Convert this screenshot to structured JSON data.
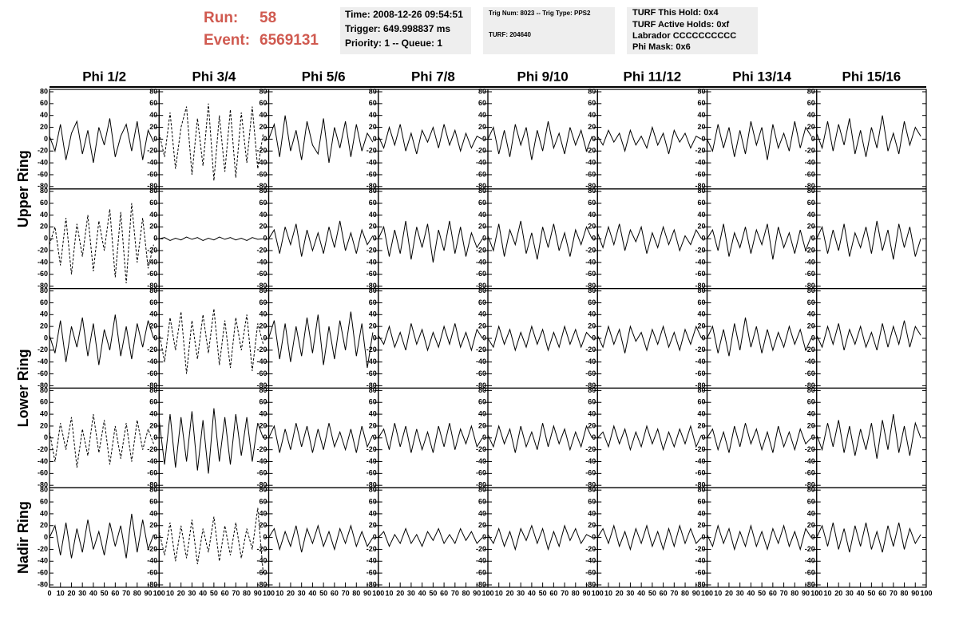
{
  "header": {
    "run_label": "Run:",
    "run": "58",
    "event_label": "Event:",
    "event": "6569131",
    "info1": [
      "Time: 2008-12-26 09:54:51",
      "Trigger: 649.998837 ms",
      "Priority: 1 -- Queue: 1"
    ],
    "info2": [
      "Trig Num: 8023 -- Trig Type: PPS2",
      "TURF: 204640"
    ],
    "info3": [
      "TURF This Hold: 0x4",
      "TURF Active Holds: 0xf",
      "Labrador CCCCCCCCCC",
      "Phi Mask: 0x6"
    ]
  },
  "chart_data": {
    "type": "line",
    "column_titles": [
      "Phi 1/2",
      "Phi 3/4",
      "Phi 5/6",
      "Phi 7/8",
      "Phi 9/10",
      "Phi 11/12",
      "Phi 13/14",
      "Phi 15/16"
    ],
    "ring_labels": [
      "Upper Ring",
      "Lower Ring",
      "Nadir Ring"
    ],
    "color": "#000000",
    "xlim": [
      0,
      100
    ],
    "xticks": [
      0,
      10,
      20,
      30,
      40,
      50,
      60,
      70,
      80,
      90,
      100
    ],
    "ylim": [
      -80,
      80
    ],
    "yticks": [
      -80,
      -60,
      -40,
      -20,
      0,
      20,
      40,
      60,
      80
    ],
    "x": [
      0,
      5,
      10,
      15,
      20,
      25,
      30,
      35,
      40,
      45,
      50,
      55,
      60,
      65,
      70,
      75,
      80,
      85,
      90,
      95
    ],
    "panels": [
      {
        "dashed": false,
        "values": [
          5,
          -20,
          25,
          -35,
          10,
          30,
          -25,
          15,
          -40,
          20,
          -10,
          35,
          -30,
          5,
          25,
          -20,
          30,
          -35,
          15,
          -5
        ]
      },
      {
        "dashed": true,
        "values": [
          10,
          -30,
          45,
          -50,
          20,
          55,
          -60,
          35,
          -45,
          60,
          -70,
          40,
          -55,
          50,
          -65,
          45,
          -40,
          55,
          -50,
          10
        ]
      },
      {
        "dashed": false,
        "values": [
          0,
          25,
          -30,
          40,
          -20,
          15,
          -35,
          30,
          -10,
          -25,
          35,
          -40,
          20,
          -15,
          30,
          -30,
          25,
          -20,
          10,
          -5
        ]
      },
      {
        "dashed": false,
        "values": [
          5,
          -15,
          20,
          -10,
          25,
          -20,
          10,
          -25,
          15,
          -5,
          20,
          -15,
          25,
          -10,
          15,
          -20,
          10,
          -15,
          5,
          0
        ]
      },
      {
        "dashed": false,
        "values": [
          0,
          20,
          -25,
          15,
          -30,
          25,
          -10,
          20,
          -35,
          15,
          -20,
          30,
          -15,
          10,
          -25,
          20,
          -10,
          15,
          -20,
          5
        ]
      },
      {
        "dashed": false,
        "values": [
          5,
          -10,
          15,
          -5,
          10,
          -20,
          15,
          -10,
          5,
          -15,
          20,
          -10,
          10,
          -25,
          15,
          -5,
          10,
          -15,
          5,
          0
        ]
      },
      {
        "dashed": false,
        "values": [
          0,
          -20,
          25,
          -15,
          20,
          -30,
          15,
          -25,
          30,
          -10,
          20,
          -35,
          25,
          -15,
          10,
          -20,
          30,
          -15,
          20,
          5
        ]
      },
      {
        "dashed": false,
        "values": [
          10,
          -15,
          30,
          -20,
          25,
          -10,
          35,
          -25,
          15,
          -30,
          20,
          -15,
          40,
          -20,
          10,
          -25,
          30,
          -10,
          20,
          5
        ]
      },
      {
        "dashed": true,
        "values": [
          -10,
          20,
          -45,
          35,
          -60,
          25,
          -30,
          40,
          -55,
          30,
          -20,
          50,
          -65,
          45,
          -75,
          60,
          -40,
          35,
          -50,
          -10
        ]
      },
      {
        "dashed": false,
        "values": [
          0,
          2,
          -3,
          1,
          -2,
          3,
          -1,
          2,
          -3,
          1,
          -2,
          3,
          -1,
          2,
          -2,
          1,
          -3,
          2,
          -1,
          0
        ]
      },
      {
        "dashed": false,
        "values": [
          0,
          15,
          -25,
          20,
          -10,
          25,
          -30,
          15,
          -20,
          10,
          -25,
          20,
          -15,
          30,
          -20,
          10,
          -25,
          15,
          -10,
          5
        ]
      },
      {
        "dashed": false,
        "values": [
          0,
          20,
          -30,
          15,
          -25,
          30,
          -35,
          20,
          -15,
          25,
          -40,
          15,
          -20,
          30,
          -25,
          20,
          -30,
          10,
          -15,
          0
        ]
      },
      {
        "dashed": false,
        "values": [
          5,
          -20,
          25,
          -30,
          15,
          -10,
          30,
          -25,
          10,
          -35,
          20,
          -15,
          25,
          -20,
          10,
          -30,
          15,
          -10,
          20,
          0
        ]
      },
      {
        "dashed": false,
        "values": [
          10,
          -15,
          20,
          -10,
          25,
          -20,
          15,
          -5,
          20,
          -25,
          10,
          -15,
          20,
          -10,
          15,
          -20,
          5,
          -10,
          15,
          0
        ]
      },
      {
        "dashed": false,
        "values": [
          0,
          15,
          -20,
          25,
          -30,
          10,
          -15,
          20,
          -25,
          15,
          -10,
          25,
          -35,
          20,
          -15,
          10,
          -25,
          15,
          -20,
          5
        ]
      },
      {
        "dashed": false,
        "values": [
          0,
          20,
          -25,
          15,
          -20,
          25,
          -30,
          10,
          -15,
          20,
          -25,
          30,
          -20,
          15,
          -35,
          25,
          -15,
          20,
          -30,
          0
        ]
      },
      {
        "dashed": false,
        "values": [
          5,
          -25,
          30,
          -40,
          20,
          -15,
          35,
          -30,
          25,
          -45,
          15,
          -20,
          40,
          -30,
          20,
          -35,
          25,
          -15,
          30,
          0
        ]
      },
      {
        "dashed": true,
        "values": [
          10,
          -40,
          35,
          -20,
          45,
          -60,
          30,
          -35,
          40,
          -25,
          50,
          -45,
          30,
          -50,
          35,
          -20,
          40,
          -55,
          25,
          -10
        ]
      },
      {
        "dashed": false,
        "values": [
          0,
          30,
          -35,
          25,
          -40,
          20,
          -30,
          35,
          -25,
          40,
          -45,
          20,
          -35,
          30,
          -20,
          45,
          -30,
          25,
          -50,
          10
        ]
      },
      {
        "dashed": false,
        "values": [
          5,
          -10,
          20,
          -15,
          10,
          -20,
          25,
          -10,
          15,
          -20,
          10,
          -15,
          20,
          -10,
          25,
          -15,
          10,
          -20,
          15,
          0
        ]
      },
      {
        "dashed": false,
        "values": [
          0,
          -15,
          20,
          -10,
          15,
          -20,
          10,
          -15,
          20,
          -10,
          15,
          -20,
          10,
          -15,
          20,
          -10,
          15,
          -15,
          10,
          0
        ]
      },
      {
        "dashed": false,
        "values": [
          5,
          -15,
          20,
          -10,
          15,
          -25,
          20,
          -5,
          10,
          -20,
          15,
          -10,
          20,
          -15,
          10,
          -20,
          15,
          -10,
          20,
          0
        ]
      },
      {
        "dashed": false,
        "values": [
          0,
          20,
          -25,
          15,
          -30,
          25,
          -20,
          35,
          -15,
          20,
          -25,
          15,
          -20,
          10,
          -15,
          20,
          -10,
          15,
          -20,
          0
        ]
      },
      {
        "dashed": false,
        "values": [
          5,
          -15,
          20,
          -10,
          25,
          -20,
          15,
          -10,
          20,
          -15,
          10,
          -20,
          25,
          -15,
          20,
          -10,
          30,
          -15,
          20,
          5
        ]
      },
      {
        "dashed": true,
        "values": [
          10,
          -40,
          25,
          -20,
          35,
          -50,
          15,
          -30,
          40,
          -25,
          30,
          -45,
          20,
          -35,
          25,
          -40,
          30,
          -20,
          15,
          -10
        ]
      },
      {
        "dashed": false,
        "values": [
          30,
          -45,
          40,
          -50,
          35,
          -40,
          45,
          -55,
          30,
          -60,
          50,
          -40,
          35,
          -45,
          40,
          -30,
          35,
          -40,
          25,
          0
        ]
      },
      {
        "dashed": false,
        "values": [
          0,
          20,
          -25,
          15,
          -20,
          25,
          -15,
          20,
          -25,
          15,
          -20,
          25,
          -15,
          10,
          -20,
          15,
          -25,
          20,
          -15,
          5
        ]
      },
      {
        "dashed": false,
        "values": [
          0,
          15,
          -20,
          25,
          -15,
          20,
          -25,
          15,
          -20,
          10,
          -25,
          20,
          -15,
          25,
          -20,
          15,
          -10,
          20,
          -15,
          0
        ]
      },
      {
        "dashed": false,
        "values": [
          5,
          -15,
          20,
          -10,
          15,
          -25,
          20,
          -15,
          10,
          -20,
          25,
          -15,
          20,
          -10,
          15,
          -20,
          10,
          -15,
          20,
          0
        ]
      },
      {
        "dashed": false,
        "values": [
          0,
          10,
          -15,
          20,
          -10,
          15,
          -20,
          10,
          -15,
          20,
          -10,
          15,
          -20,
          10,
          -15,
          15,
          -10,
          20,
          -15,
          5
        ]
      },
      {
        "dashed": false,
        "values": [
          0,
          15,
          -20,
          10,
          -25,
          20,
          -15,
          25,
          -10,
          15,
          -20,
          10,
          -25,
          20,
          -15,
          10,
          -20,
          15,
          -10,
          0
        ]
      },
      {
        "dashed": false,
        "values": [
          5,
          -20,
          25,
          -15,
          30,
          -25,
          20,
          -30,
          15,
          -20,
          25,
          -35,
          30,
          -20,
          40,
          -25,
          20,
          -30,
          25,
          0
        ]
      },
      {
        "dashed": false,
        "values": [
          0,
          20,
          -30,
          25,
          -35,
          15,
          -25,
          30,
          -20,
          10,
          -30,
          25,
          -15,
          20,
          -35,
          40,
          -25,
          30,
          -20,
          5
        ]
      },
      {
        "dashed": true,
        "values": [
          10,
          -30,
          25,
          -40,
          20,
          -35,
          30,
          -45,
          15,
          -25,
          35,
          -40,
          20,
          -30,
          25,
          -35,
          15,
          -20,
          50,
          -60
        ]
      },
      {
        "dashed": false,
        "values": [
          0,
          15,
          -20,
          10,
          -15,
          20,
          -25,
          15,
          -10,
          20,
          -15,
          10,
          -20,
          15,
          -10,
          20,
          -15,
          10,
          -15,
          0
        ]
      },
      {
        "dashed": false,
        "values": [
          0,
          10,
          -15,
          5,
          -10,
          15,
          -10,
          5,
          -15,
          10,
          -5,
          15,
          -10,
          5,
          -10,
          15,
          -5,
          10,
          -10,
          0
        ]
      },
      {
        "dashed": false,
        "values": [
          5,
          -10,
          15,
          -15,
          10,
          -20,
          15,
          -5,
          20,
          -10,
          15,
          -20,
          10,
          -15,
          20,
          -5,
          15,
          -10,
          5,
          0
        ]
      },
      {
        "dashed": false,
        "values": [
          0,
          15,
          -10,
          20,
          -15,
          10,
          -20,
          15,
          -10,
          20,
          -15,
          10,
          -20,
          15,
          -15,
          20,
          -10,
          15,
          -10,
          0
        ]
      },
      {
        "dashed": false,
        "values": [
          5,
          -15,
          20,
          -10,
          15,
          -20,
          10,
          -15,
          20,
          -15,
          10,
          -20,
          15,
          -10,
          20,
          -15,
          10,
          -20,
          15,
          0
        ]
      },
      {
        "dashed": false,
        "values": [
          0,
          20,
          -15,
          25,
          -20,
          15,
          -25,
          20,
          -15,
          25,
          -20,
          10,
          -25,
          20,
          -15,
          25,
          -20,
          15,
          -10,
          5
        ]
      }
    ]
  }
}
